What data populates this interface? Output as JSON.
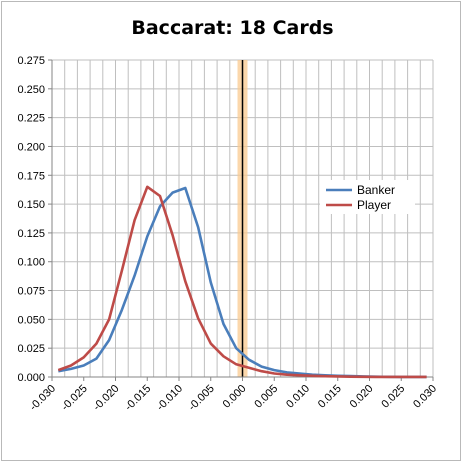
{
  "chart_data": {
    "type": "line",
    "title": "Baccarat: 18 Cards",
    "xlabel": "",
    "ylabel": "",
    "xlim": [
      -0.03,
      0.03
    ],
    "ylim": [
      0,
      0.275
    ],
    "x_ticks": [
      "-0.030",
      "-0.025",
      "-0.020",
      "-0.015",
      "-0.010",
      "-0.005",
      "0.000",
      "0.005",
      "0.010",
      "0.015",
      "0.020",
      "0.025",
      "0.030"
    ],
    "y_ticks": [
      "0.000",
      "0.025",
      "0.050",
      "0.075",
      "0.100",
      "0.125",
      "0.150",
      "0.175",
      "0.200",
      "0.225",
      "0.250",
      "0.275"
    ],
    "grid": true,
    "legend": "right",
    "reference_line": {
      "x": 0.0,
      "color": "#000000",
      "band_color": "#f9c98f"
    },
    "x": [
      -0.029,
      -0.027,
      -0.025,
      -0.023,
      -0.021,
      -0.019,
      -0.017,
      -0.015,
      -0.013,
      -0.011,
      -0.009,
      -0.007,
      -0.005,
      -0.003,
      -0.001,
      0.001,
      0.003,
      0.005,
      0.007,
      0.009,
      0.011,
      0.013,
      0.015,
      0.017,
      0.019,
      0.021,
      0.023,
      0.025,
      0.027,
      0.029
    ],
    "series": [
      {
        "name": "Banker",
        "color": "#4a7ebb",
        "values": [
          0.005,
          0.007,
          0.01,
          0.016,
          0.032,
          0.058,
          0.088,
          0.122,
          0.148,
          0.16,
          0.164,
          0.13,
          0.082,
          0.046,
          0.025,
          0.015,
          0.009,
          0.006,
          0.004,
          0.003,
          0.002,
          0.0015,
          0.001,
          0.0008,
          0.0005,
          0.0003,
          0.0002,
          0.0001,
          0.0001,
          0.0001
        ]
      },
      {
        "name": "Player",
        "color": "#be4b48",
        "values": [
          0.006,
          0.01,
          0.017,
          0.029,
          0.05,
          0.092,
          0.136,
          0.165,
          0.157,
          0.123,
          0.083,
          0.051,
          0.029,
          0.018,
          0.011,
          0.008,
          0.005,
          0.003,
          0.002,
          0.0015,
          0.001,
          0.0007,
          0.0005,
          0.0003,
          0.0002,
          0.0001,
          0.0001,
          0.0001,
          0.0001,
          0.0001
        ]
      }
    ]
  }
}
